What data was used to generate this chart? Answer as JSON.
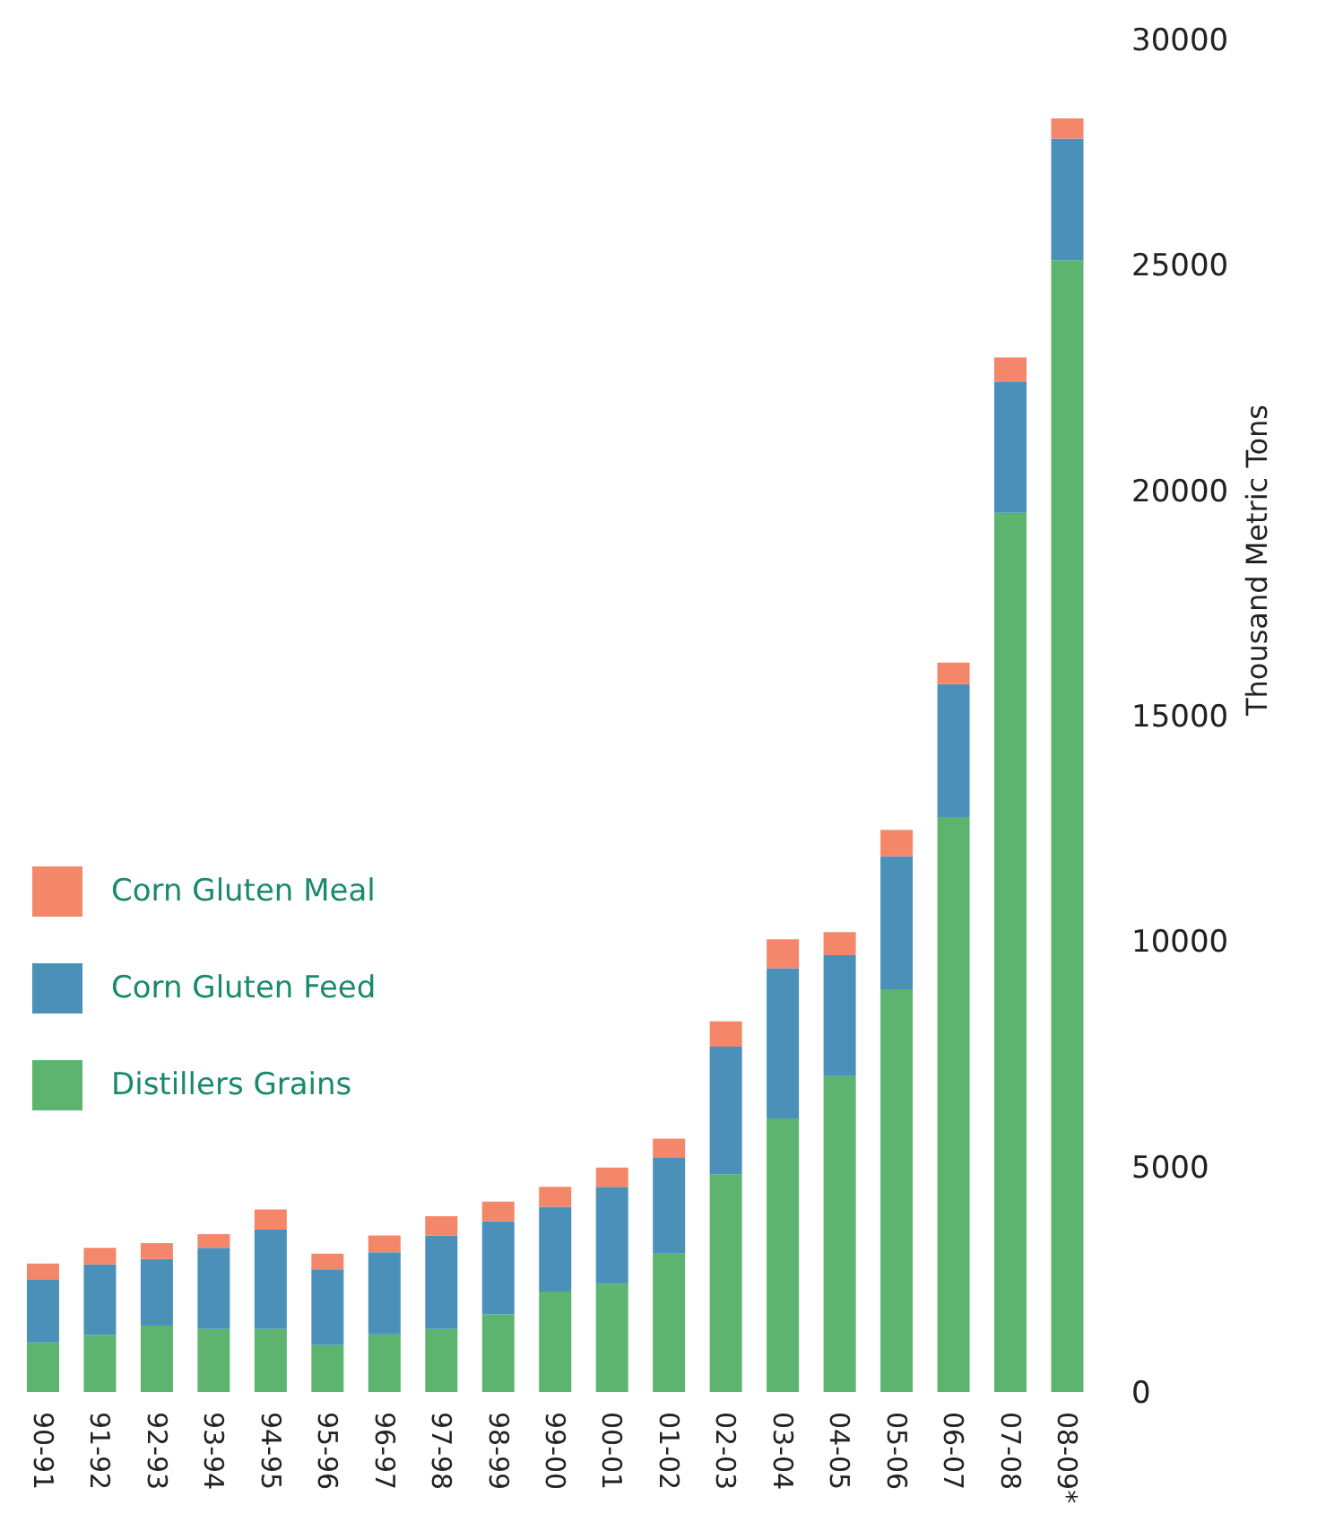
{
  "chart_data": {
    "type": "bar",
    "stacked": true,
    "ylabel": "Thousand Metric Tons",
    "categories": [
      "90-91",
      "91-92",
      "92-93",
      "93-94",
      "94-95",
      "95-96",
      "96-97",
      "97-98",
      "98-99",
      "99-00",
      "00-01",
      "01-02",
      "02-03",
      "03-04",
      "04-05",
      "05-06",
      "06-07",
      "07-08",
      "08-09*"
    ],
    "series": [
      {
        "name": "Distillers Grains",
        "color": "#5cb46e",
        "values": [
          1100,
          1270,
          1470,
          1400,
          1400,
          1040,
          1280,
          1400,
          1720,
          2230,
          2400,
          3070,
          4830,
          6070,
          7010,
          8930,
          12750,
          19500,
          25100
        ]
      },
      {
        "name": "Corn Gluten Feed",
        "color": "#4a90b8",
        "values": [
          1400,
          1560,
          1480,
          1800,
          2200,
          1680,
          1820,
          2070,
          2070,
          1880,
          2150,
          2120,
          2830,
          3330,
          2680,
          2950,
          2950,
          2900,
          2700
        ]
      },
      {
        "name": "Corn Gluten Meal",
        "color": "#f4876a",
        "values": [
          350,
          370,
          350,
          300,
          450,
          350,
          370,
          430,
          430,
          440,
          430,
          430,
          560,
          640,
          510,
          590,
          480,
          550,
          450
        ]
      }
    ],
    "ylim": [
      0,
      30000
    ],
    "yticks": [
      0,
      5000,
      10000,
      15000,
      20000,
      25000,
      30000
    ],
    "grid": false,
    "legend": "left"
  }
}
